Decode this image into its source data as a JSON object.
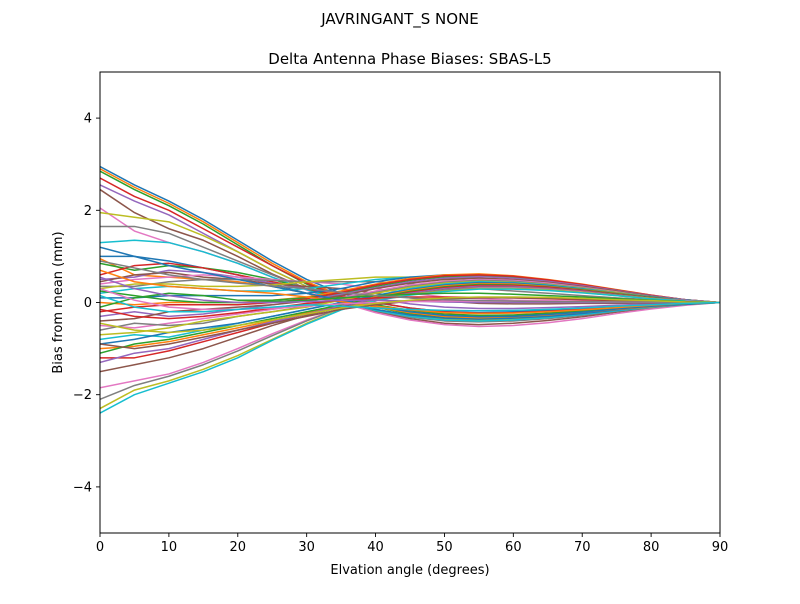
{
  "chart_data": {
    "type": "line",
    "suptitle": "JAVRINGANT_S    NONE",
    "title": "Delta Antenna Phase Biases: SBAS-L5",
    "xlabel": "Elvation angle (degrees)",
    "ylabel": "Bias from mean (mm)",
    "xlim": [
      0,
      90
    ],
    "ylim": [
      -5,
      5
    ],
    "xticks": [
      0,
      10,
      20,
      30,
      40,
      50,
      60,
      70,
      80,
      90
    ],
    "yticks": [
      -4,
      -2,
      0,
      2,
      4
    ],
    "xtick_labels": [
      "0",
      "10",
      "20",
      "30",
      "40",
      "50",
      "60",
      "70",
      "80",
      "90"
    ],
    "ytick_labels": [
      "−4",
      "−2",
      "0",
      "2",
      "4"
    ],
    "grid": false,
    "legend": "none",
    "x": [
      0,
      5,
      10,
      15,
      20,
      25,
      30,
      35,
      40,
      45,
      50,
      55,
      60,
      65,
      70,
      75,
      80,
      85,
      90
    ],
    "color_cycle": [
      "#1f77b4",
      "#ff7f0e",
      "#2ca02c",
      "#d62728",
      "#9467bd",
      "#8c564b",
      "#e377c2",
      "#7f7f7f",
      "#bcbd22",
      "#17becf"
    ],
    "series": [
      {
        "values": [
          2.95,
          2.55,
          2.2,
          1.8,
          1.35,
          0.9,
          0.5,
          0.2,
          0.0,
          -0.12,
          -0.2,
          -0.22,
          -0.2,
          -0.17,
          -0.13,
          -0.09,
          -0.05,
          -0.02,
          0.0
        ]
      },
      {
        "values": [
          2.9,
          2.5,
          2.15,
          1.75,
          1.3,
          0.85,
          0.45,
          0.15,
          -0.05,
          -0.2,
          -0.28,
          -0.3,
          -0.28,
          -0.24,
          -0.19,
          -0.13,
          -0.08,
          -0.03,
          0.0
        ]
      },
      {
        "values": [
          2.85,
          2.45,
          2.1,
          1.7,
          1.25,
          0.8,
          0.4,
          0.1,
          -0.1,
          -0.25,
          -0.33,
          -0.35,
          -0.33,
          -0.28,
          -0.22,
          -0.15,
          -0.09,
          -0.04,
          0.0
        ]
      },
      {
        "values": [
          2.7,
          2.3,
          2.0,
          1.6,
          1.2,
          0.8,
          0.42,
          0.12,
          -0.08,
          -0.22,
          -0.3,
          -0.32,
          -0.3,
          -0.26,
          -0.2,
          -0.14,
          -0.08,
          -0.03,
          0.0
        ]
      },
      {
        "values": [
          2.55,
          2.2,
          1.9,
          1.5,
          1.1,
          0.7,
          0.35,
          0.05,
          -0.15,
          -0.3,
          -0.38,
          -0.4,
          -0.37,
          -0.32,
          -0.25,
          -0.17,
          -0.1,
          -0.04,
          0.0
        ]
      },
      {
        "values": [
          2.45,
          1.95,
          1.6,
          1.35,
          1.0,
          0.62,
          0.3,
          0.02,
          -0.2,
          -0.35,
          -0.45,
          -0.48,
          -0.45,
          -0.39,
          -0.31,
          -0.21,
          -0.12,
          -0.05,
          0.0
        ]
      },
      {
        "values": [
          2.05,
          1.55,
          1.3,
          1.1,
          0.85,
          0.55,
          0.27,
          0.0,
          -0.22,
          -0.38,
          -0.48,
          -0.52,
          -0.5,
          -0.44,
          -0.35,
          -0.24,
          -0.14,
          -0.06,
          0.0
        ]
      },
      {
        "values": [
          1.65,
          1.65,
          1.5,
          1.2,
          0.9,
          0.6,
          0.3,
          0.02,
          -0.18,
          -0.32,
          -0.4,
          -0.42,
          -0.4,
          -0.35,
          -0.28,
          -0.19,
          -0.11,
          -0.04,
          0.0
        ]
      },
      {
        "values": [
          1.95,
          1.85,
          1.75,
          1.45,
          1.1,
          0.7,
          0.35,
          0.05,
          -0.15,
          -0.28,
          -0.36,
          -0.38,
          -0.36,
          -0.31,
          -0.25,
          -0.17,
          -0.1,
          -0.04,
          0.0
        ]
      },
      {
        "values": [
          1.3,
          1.35,
          1.3,
          1.1,
          0.85,
          0.55,
          0.28,
          0.03,
          -0.17,
          -0.3,
          -0.38,
          -0.4,
          -0.38,
          -0.33,
          -0.26,
          -0.18,
          -0.1,
          -0.04,
          0.0
        ]
      },
      {
        "values": [
          1.0,
          1.0,
          0.9,
          0.75,
          0.6,
          0.4,
          0.2,
          0.0,
          -0.15,
          -0.27,
          -0.34,
          -0.36,
          -0.34,
          -0.3,
          -0.24,
          -0.16,
          -0.09,
          -0.04,
          0.0
        ]
      },
      {
        "values": [
          0.95,
          0.6,
          0.55,
          0.5,
          0.45,
          0.35,
          0.2,
          0.05,
          -0.1,
          -0.22,
          -0.3,
          -0.33,
          -0.31,
          -0.27,
          -0.21,
          -0.15,
          -0.09,
          -0.03,
          0.0
        ]
      },
      {
        "values": [
          0.85,
          0.7,
          0.8,
          0.75,
          0.65,
          0.5,
          0.3,
          0.1,
          -0.05,
          -0.17,
          -0.25,
          -0.28,
          -0.27,
          -0.23,
          -0.18,
          -0.13,
          -0.07,
          -0.03,
          0.0
        ]
      },
      {
        "values": [
          0.6,
          0.8,
          0.85,
          0.75,
          0.6,
          0.45,
          0.3,
          0.15,
          0.0,
          -0.12,
          -0.2,
          -0.23,
          -0.22,
          -0.19,
          -0.15,
          -0.1,
          -0.06,
          -0.02,
          0.0
        ]
      },
      {
        "values": [
          0.5,
          0.55,
          0.7,
          0.65,
          0.55,
          0.42,
          0.3,
          0.2,
          0.08,
          -0.03,
          -0.1,
          -0.13,
          -0.13,
          -0.11,
          -0.09,
          -0.06,
          -0.03,
          -0.01,
          0.0
        ]
      },
      {
        "values": [
          0.45,
          0.6,
          0.65,
          0.55,
          0.5,
          0.4,
          0.35,
          0.3,
          0.2,
          0.1,
          0.03,
          -0.02,
          -0.03,
          -0.03,
          -0.02,
          -0.02,
          -0.01,
          0.0,
          0.0
        ]
      },
      {
        "values": [
          0.4,
          0.5,
          0.55,
          0.6,
          0.55,
          0.5,
          0.45,
          0.4,
          0.3,
          0.2,
          0.12,
          0.08,
          0.05,
          0.04,
          0.03,
          0.02,
          0.01,
          0.0,
          0.0
        ]
      },
      {
        "values": [
          0.35,
          0.35,
          0.45,
          0.5,
          0.5,
          0.48,
          0.45,
          0.45,
          0.45,
          0.4,
          0.35,
          0.3,
          0.25,
          0.2,
          0.15,
          0.1,
          0.06,
          0.02,
          0.0
        ]
      },
      {
        "values": [
          0.3,
          0.4,
          0.4,
          0.35,
          0.35,
          0.38,
          0.45,
          0.5,
          0.55,
          0.55,
          0.5,
          0.45,
          0.38,
          0.3,
          0.22,
          0.15,
          0.08,
          0.03,
          0.0
        ]
      },
      {
        "values": [
          0.2,
          0.3,
          0.35,
          0.3,
          0.25,
          0.25,
          0.3,
          0.4,
          0.5,
          0.55,
          0.55,
          0.52,
          0.46,
          0.38,
          0.29,
          0.2,
          0.11,
          0.04,
          0.0
        ]
      },
      {
        "values": [
          0.1,
          0.1,
          0.15,
          0.15,
          0.15,
          0.15,
          0.2,
          0.3,
          0.45,
          0.55,
          0.6,
          0.6,
          0.55,
          0.47,
          0.37,
          0.26,
          0.15,
          0.06,
          0.0
        ]
      },
      {
        "values": [
          0.0,
          -0.05,
          0.0,
          0.0,
          0.0,
          0.05,
          0.12,
          0.25,
          0.4,
          0.52,
          0.6,
          0.62,
          0.58,
          0.5,
          0.4,
          0.28,
          0.16,
          0.06,
          0.0
        ]
      },
      {
        "values": [
          -0.1,
          0.1,
          0.2,
          0.15,
          0.05,
          0.05,
          0.1,
          0.2,
          0.35,
          0.48,
          0.56,
          0.58,
          0.55,
          0.48,
          0.38,
          0.27,
          0.15,
          0.06,
          0.0
        ]
      },
      {
        "values": [
          -0.2,
          -0.1,
          -0.05,
          -0.05,
          -0.05,
          0.0,
          0.08,
          0.22,
          0.38,
          0.5,
          0.58,
          0.6,
          0.57,
          0.49,
          0.39,
          0.27,
          0.16,
          0.06,
          0.0
        ]
      },
      {
        "values": [
          -0.3,
          -0.2,
          -0.3,
          -0.25,
          -0.15,
          -0.05,
          0.05,
          0.18,
          0.32,
          0.45,
          0.53,
          0.56,
          0.53,
          0.46,
          0.37,
          0.26,
          0.15,
          0.06,
          0.0
        ]
      },
      {
        "values": [
          -0.4,
          -0.35,
          -0.2,
          -0.15,
          -0.1,
          -0.05,
          0.03,
          0.15,
          0.3,
          0.42,
          0.5,
          0.53,
          0.5,
          0.44,
          0.35,
          0.25,
          0.14,
          0.05,
          0.0
        ]
      },
      {
        "values": [
          -0.5,
          -0.55,
          -0.45,
          -0.35,
          -0.25,
          -0.15,
          -0.05,
          0.1,
          0.25,
          0.38,
          0.46,
          0.5,
          0.48,
          0.42,
          0.33,
          0.23,
          0.13,
          0.05,
          0.0
        ]
      },
      {
        "values": [
          -0.6,
          -0.45,
          -0.5,
          -0.45,
          -0.3,
          -0.2,
          -0.08,
          0.08,
          0.22,
          0.35,
          0.44,
          0.48,
          0.46,
          0.4,
          0.32,
          0.22,
          0.13,
          0.05,
          0.0
        ]
      },
      {
        "values": [
          -0.7,
          -0.65,
          -0.55,
          -0.4,
          -0.3,
          -0.2,
          -0.1,
          0.05,
          0.2,
          0.33,
          0.42,
          0.46,
          0.44,
          0.39,
          0.31,
          0.22,
          0.12,
          0.05,
          0.0
        ]
      },
      {
        "values": [
          -0.8,
          -0.7,
          -0.75,
          -0.6,
          -0.45,
          -0.3,
          -0.15,
          0.0,
          0.15,
          0.3,
          0.4,
          0.45,
          0.43,
          0.38,
          0.3,
          0.21,
          0.12,
          0.05,
          0.0
        ]
      },
      {
        "values": [
          -0.9,
          -0.8,
          -0.65,
          -0.55,
          -0.45,
          -0.3,
          -0.15,
          0.0,
          0.15,
          0.28,
          0.38,
          0.43,
          0.42,
          0.37,
          0.29,
          0.2,
          0.12,
          0.05,
          0.0
        ]
      },
      {
        "values": [
          -1.0,
          -0.95,
          -0.85,
          -0.7,
          -0.55,
          -0.4,
          -0.22,
          -0.05,
          0.12,
          0.26,
          0.36,
          0.41,
          0.4,
          0.35,
          0.28,
          0.2,
          0.11,
          0.04,
          0.0
        ]
      },
      {
        "values": [
          -1.1,
          -0.9,
          -0.8,
          -0.65,
          -0.5,
          -0.35,
          -0.2,
          -0.05,
          0.1,
          0.24,
          0.34,
          0.39,
          0.38,
          0.34,
          0.27,
          0.19,
          0.11,
          0.04,
          0.0
        ]
      },
      {
        "values": [
          -1.2,
          -1.2,
          -1.05,
          -0.85,
          -0.65,
          -0.45,
          -0.25,
          -0.08,
          0.08,
          0.22,
          0.32,
          0.37,
          0.37,
          0.33,
          0.26,
          0.18,
          0.1,
          0.04,
          0.0
        ]
      },
      {
        "values": [
          -1.3,
          -1.1,
          -1.0,
          -0.8,
          -0.6,
          -0.42,
          -0.25,
          -0.08,
          0.08,
          0.2,
          0.3,
          0.35,
          0.35,
          0.31,
          0.25,
          0.17,
          0.1,
          0.04,
          0.0
        ]
      },
      {
        "values": [
          -1.5,
          -1.35,
          -1.2,
          -1.0,
          -0.75,
          -0.5,
          -0.28,
          -0.1,
          0.05,
          0.18,
          0.28,
          0.33,
          0.33,
          0.3,
          0.24,
          0.17,
          0.1,
          0.04,
          0.0
        ]
      },
      {
        "values": [
          -1.85,
          -1.7,
          -1.55,
          -1.3,
          -1.0,
          -0.68,
          -0.38,
          -0.12,
          0.05,
          0.18,
          0.27,
          0.32,
          0.32,
          0.29,
          0.23,
          0.16,
          0.09,
          0.04,
          0.0
        ]
      },
      {
        "values": [
          -2.1,
          -1.8,
          -1.6,
          -1.35,
          -1.05,
          -0.72,
          -0.4,
          -0.12,
          0.06,
          0.18,
          0.27,
          0.31,
          0.31,
          0.28,
          0.22,
          0.16,
          0.09,
          0.03,
          0.0
        ]
      },
      {
        "values": [
          -2.3,
          -1.9,
          -1.7,
          -1.45,
          -1.15,
          -0.8,
          -0.45,
          -0.15,
          0.05,
          0.17,
          0.25,
          0.3,
          0.3,
          0.27,
          0.22,
          0.15,
          0.09,
          0.03,
          0.0
        ]
      },
      {
        "values": [
          -2.4,
          -2.0,
          -1.75,
          -1.5,
          -1.2,
          -0.82,
          -0.47,
          -0.16,
          0.04,
          0.16,
          0.24,
          0.29,
          0.29,
          0.26,
          0.21,
          0.15,
          0.08,
          0.03,
          0.0
        ]
      },
      {
        "values": [
          1.2,
          1.0,
          0.8,
          0.65,
          0.5,
          0.35,
          0.2,
          0.05,
          -0.08,
          -0.2,
          -0.28,
          -0.31,
          -0.3,
          -0.26,
          -0.21,
          -0.14,
          -0.08,
          -0.03,
          0.0
        ]
      },
      {
        "values": [
          0.7,
          0.45,
          0.35,
          0.3,
          0.25,
          0.2,
          0.12,
          0.02,
          -0.08,
          -0.16,
          -0.22,
          -0.24,
          -0.23,
          -0.2,
          -0.16,
          -0.11,
          -0.06,
          -0.02,
          0.0
        ]
      },
      {
        "values": [
          0.25,
          0.15,
          0.05,
          0.0,
          0.0,
          0.02,
          0.05,
          0.1,
          0.15,
          0.18,
          0.2,
          0.2,
          0.18,
          0.15,
          0.12,
          0.08,
          0.05,
          0.02,
          0.0
        ]
      },
      {
        "values": [
          -0.15,
          -0.3,
          -0.35,
          -0.3,
          -0.22,
          -0.12,
          -0.02,
          0.05,
          0.1,
          0.12,
          0.12,
          0.11,
          0.1,
          0.08,
          0.06,
          0.04,
          0.02,
          0.01,
          0.0
        ]
      },
      {
        "values": [
          0.55,
          0.3,
          0.15,
          0.05,
          0.0,
          0.0,
          0.02,
          0.05,
          0.05,
          0.03,
          0.01,
          0.0,
          0.0,
          0.0,
          0.0,
          0.0,
          0.0,
          0.0,
          0.0
        ]
      },
      {
        "values": [
          -0.9,
          -1.0,
          -0.9,
          -0.75,
          -0.6,
          -0.45,
          -0.3,
          -0.15,
          -0.05,
          0.03,
          0.08,
          0.1,
          0.1,
          0.09,
          0.07,
          0.05,
          0.03,
          0.01,
          0.0
        ]
      },
      {
        "values": [
          0.3,
          0.05,
          -0.1,
          -0.15,
          -0.15,
          -0.12,
          -0.08,
          -0.03,
          0.0,
          0.02,
          0.03,
          0.03,
          0.03,
          0.02,
          0.02,
          0.01,
          0.01,
          0.0,
          0.0
        ]
      },
      {
        "values": [
          0.9,
          0.75,
          0.6,
          0.5,
          0.42,
          0.36,
          0.3,
          0.22,
          0.15,
          0.1,
          0.06,
          0.04,
          0.03,
          0.02,
          0.02,
          0.01,
          0.01,
          0.0,
          0.0
        ]
      },
      {
        "values": [
          -0.45,
          -0.6,
          -0.65,
          -0.6,
          -0.5,
          -0.38,
          -0.25,
          -0.12,
          -0.02,
          0.05,
          0.1,
          0.12,
          0.12,
          0.11,
          0.09,
          0.06,
          0.04,
          0.01,
          0.0
        ]
      },
      {
        "values": [
          0.15,
          -0.1,
          -0.2,
          -0.2,
          -0.15,
          -0.1,
          -0.05,
          -0.08,
          -0.12,
          -0.15,
          -0.17,
          -0.18,
          -0.17,
          -0.15,
          -0.12,
          -0.08,
          -0.05,
          -0.02,
          0.0
        ]
      }
    ]
  }
}
